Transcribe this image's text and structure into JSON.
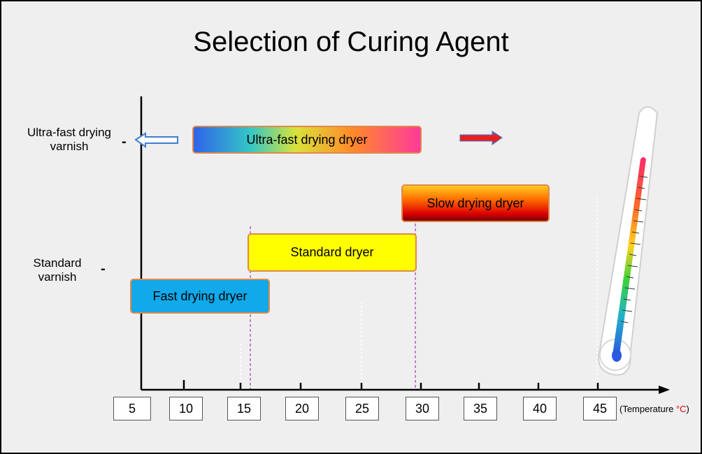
{
  "title": "Selection of Curing Agent",
  "y_labels": [
    {
      "line1": "Ultra-fast drying",
      "line2": "varnish"
    },
    {
      "line1": "Standard",
      "line2": "varnish"
    }
  ],
  "bars": [
    {
      "label": "Ultra-fast drying dryer",
      "x_start": 10.5,
      "x_end": 29.8
    },
    {
      "label": "Slow drying dryer",
      "x_start": 29.1,
      "x_end": 41.8
    },
    {
      "label": "Standard dryer",
      "x_start": 15.6,
      "x_end": 29.5
    },
    {
      "label": "Fast drying dryer",
      "x_start": 4,
      "x_end": 16.4
    }
  ],
  "x_ticks": [
    "5",
    "10",
    "15",
    "20",
    "25",
    "30",
    "35",
    "40",
    "45"
  ],
  "x_unit": {
    "prefix": "(Temperature ",
    "symbol": "°C",
    "suffix": ")"
  },
  "colors": {
    "bar_border": "#e2884a",
    "fast_dryer": "#11a9ea",
    "standard_dryer": "#ffff00",
    "arrow_left": "#3f7fd0",
    "arrow_right": "#e02020",
    "guide_line": "#b060c0"
  },
  "icons": [
    "left-arrow-icon",
    "right-arrow-icon",
    "thermometer-icon"
  ]
}
